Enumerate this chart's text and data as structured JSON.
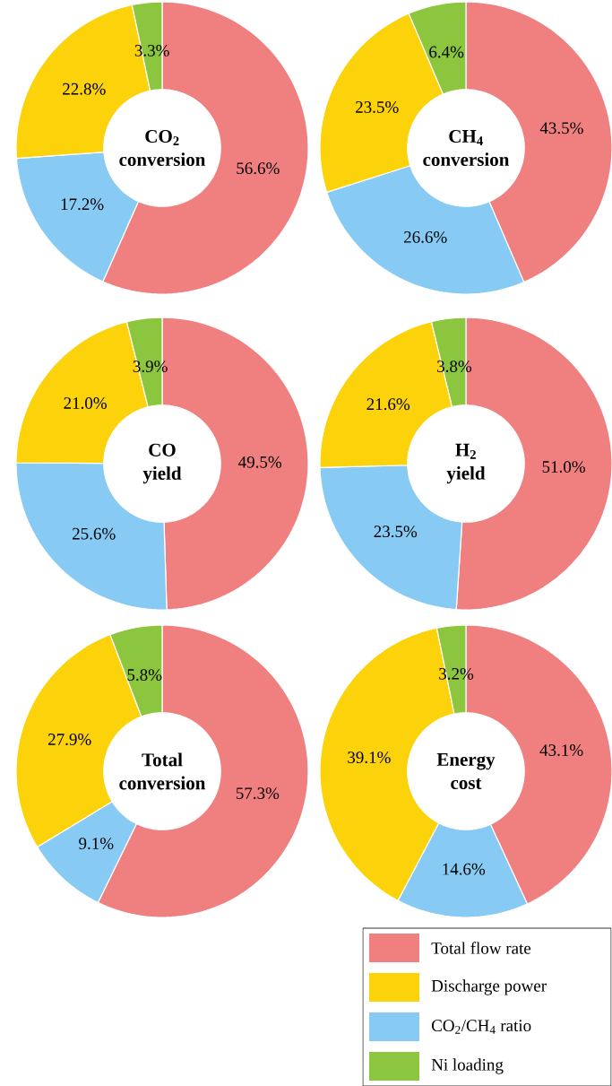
{
  "chart_data": [
    {
      "type": "donut",
      "title": "CO$_{2}$ conversion",
      "categories": [
        null,
        null,
        null,
        null
      ],
      "values": [
        56.6,
        22.8,
        17.2,
        3.3
      ],
      "value_labels": [
        "56.6%",
        "22.8%",
        "17.2%",
        "3.3%"
      ],
      "colors": [
        "#f08080",
        "#fcd20a",
        "#87cbf5",
        "#8cc63f"
      ]
    },
    {
      "type": "donut",
      "title": "CH$_{4}$ conversion",
      "categories": [
        null,
        null,
        null,
        null
      ],
      "values": [
        43.5,
        23.5,
        26.6,
        6.4
      ],
      "value_labels": [
        "43.5%",
        "23.5%",
        "26.6%",
        "6.4%"
      ],
      "colors": [
        "#f08080",
        "#fcd20a",
        "#87cbf5",
        "#8cc63f"
      ]
    },
    {
      "type": "donut",
      "title": "CO yield",
      "categories": [
        null,
        null,
        null,
        null
      ],
      "values": [
        49.5,
        21.0,
        25.6,
        3.9
      ],
      "value_labels": [
        "49.5%",
        "21.0%",
        "25.6%",
        "3.9%"
      ],
      "colors": [
        "#f08080",
        "#fcd20a",
        "#87cbf5",
        "#8cc63f"
      ]
    },
    {
      "type": "donut",
      "title": "H$_{2}$ yield",
      "categories": [
        null,
        null,
        null,
        null
      ],
      "values": [
        51.0,
        21.6,
        23.5,
        3.8
      ],
      "value_labels": [
        "51.0%",
        "21.6%",
        "23.5%",
        "3.8%"
      ],
      "colors": [
        "#f08080",
        "#fcd20a",
        "#87cbf5",
        "#8cc63f"
      ]
    },
    {
      "type": "donut",
      "title": "Total conversion",
      "categories": [
        null,
        null,
        null,
        null
      ],
      "values": [
        57.3,
        27.9,
        9.1,
        5.8
      ],
      "value_labels": [
        "57.3%",
        "27.9%",
        "9.1%",
        "5.8%"
      ],
      "colors": [
        "#f08080",
        "#fcd20a",
        "#87cbf5",
        "#8cc63f"
      ]
    },
    {
      "type": "donut",
      "title": "Energy cost",
      "categories": [
        "Total flow rate",
        "Discharge power",
        "CO$_{2}$/CH$_{4}$ ratio",
        "Ni loading"
      ],
      "values": [
        43.1,
        39.1,
        14.6,
        3.2
      ],
      "value_labels": [
        "43.1%",
        "39.1%",
        "14.6%",
        "3.2%"
      ],
      "colors": [
        "#f08080",
        "#fcd20a",
        "#87cbf5",
        "#8cc63f"
      ],
      "legend": "bottom right"
    }
  ]
}
